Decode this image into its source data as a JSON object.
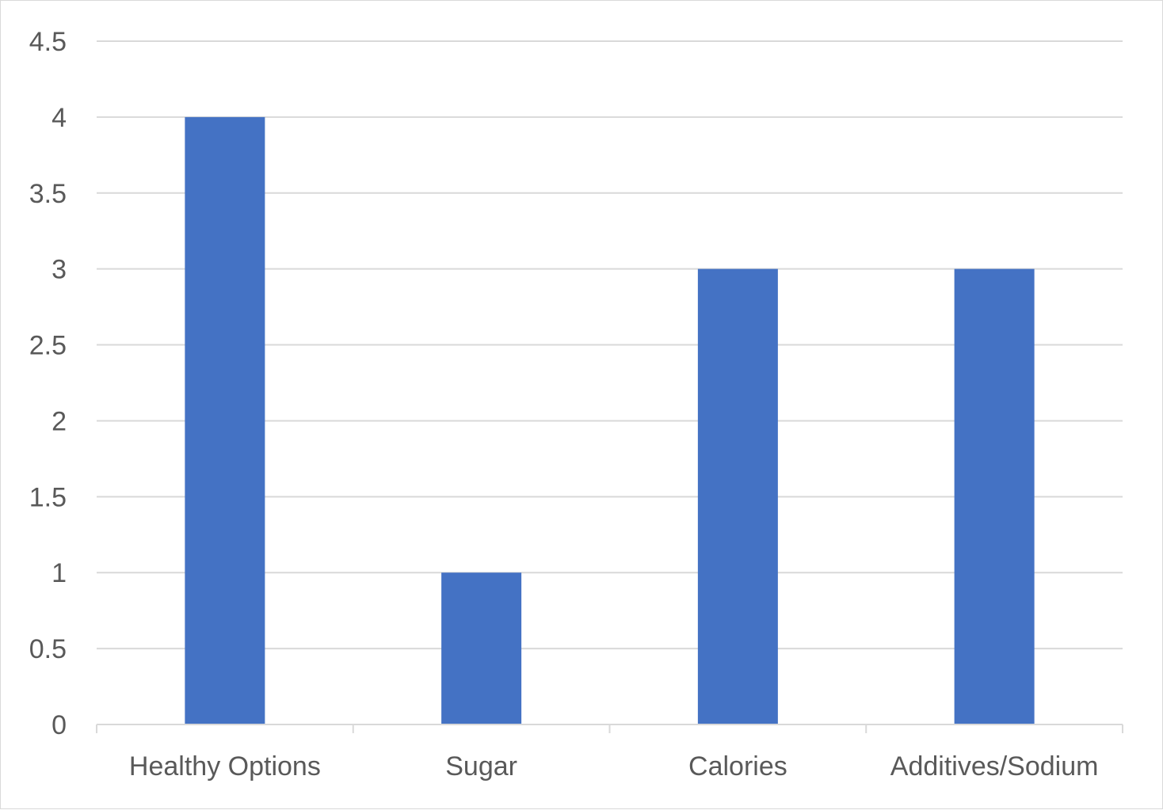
{
  "chart_data": {
    "type": "bar",
    "categories": [
      "Healthy Options",
      "Sugar",
      "Calories",
      "Additives/Sodium"
    ],
    "values": [
      4,
      1,
      3,
      3
    ],
    "title": "",
    "xlabel": "",
    "ylabel": "",
    "ylim": [
      0,
      4.5
    ],
    "yticks": [
      "0",
      "0.5",
      "1",
      "1.5",
      "2",
      "2.5",
      "3",
      "3.5",
      "4",
      "4.5"
    ],
    "grid": true,
    "legend": "none",
    "colors": {
      "bar": "#4472C4",
      "grid": "#d9d9d9",
      "axis": "#d9d9d9",
      "tick_text": "#595959"
    }
  }
}
